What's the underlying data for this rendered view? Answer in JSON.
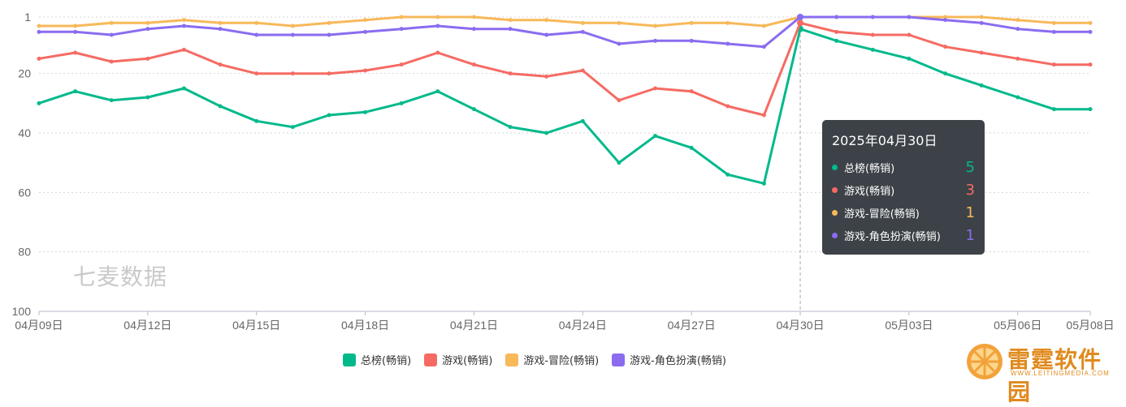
{
  "chart_data": {
    "type": "line",
    "y_inverted": true,
    "ylim": [
      1,
      100
    ],
    "y_ticks": [
      "1",
      "20",
      "40",
      "60",
      "80",
      "100"
    ],
    "x": [
      "04月09日",
      "04月10日",
      "04月11日",
      "04月12日",
      "04月13日",
      "04月14日",
      "04月15日",
      "04月16日",
      "04月17日",
      "04月18日",
      "04月19日",
      "04月20日",
      "04月21日",
      "04月22日",
      "04月23日",
      "04月24日",
      "04月25日",
      "04月26日",
      "04月27日",
      "04月28日",
      "04月29日",
      "04月30日",
      "05月01日",
      "05月02日",
      "05月03日",
      "05月04日",
      "05月05日",
      "05月06日",
      "05月07日",
      "05月08日"
    ],
    "x_tick_labels": [
      "04月09日",
      "04月12日",
      "04月15日",
      "04月18日",
      "04月21日",
      "04月24日",
      "04月27日",
      "04月30日",
      "05月03日",
      "05月06日",
      "05月08日"
    ],
    "series": [
      {
        "name": "总榜(畅销)",
        "color": "#00b98b",
        "values": [
          30,
          26,
          29,
          28,
          25,
          31,
          36,
          38,
          34,
          33,
          30,
          26,
          32,
          38,
          40,
          36,
          50,
          41,
          45,
          54,
          57,
          5,
          9,
          12,
          15,
          20,
          24,
          28,
          32,
          32
        ]
      },
      {
        "name": "游戏(畅销)",
        "color": "#f56b63",
        "values": [
          15,
          13,
          16,
          15,
          12,
          17,
          20,
          20,
          20,
          19,
          17,
          13,
          17,
          20,
          21,
          19,
          29,
          25,
          26,
          31,
          34,
          3,
          6,
          7,
          7,
          11,
          13,
          15,
          17,
          17
        ]
      },
      {
        "name": "游戏-冒险(畅销)",
        "color": "#f7b95a",
        "values": [
          4,
          4,
          3,
          3,
          2,
          3,
          3,
          4,
          3,
          2,
          1,
          1,
          1,
          2,
          2,
          3,
          3,
          4,
          3,
          3,
          4,
          1,
          1,
          1,
          1,
          1,
          1,
          2,
          3,
          3
        ]
      },
      {
        "name": "游戏-角色扮演(畅销)",
        "color": "#8b6cf0",
        "values": [
          6,
          6,
          7,
          5,
          4,
          5,
          7,
          7,
          7,
          6,
          5,
          4,
          5,
          5,
          7,
          6,
          10,
          9,
          9,
          10,
          11,
          1,
          1,
          1,
          1,
          2,
          3,
          5,
          6,
          6
        ]
      }
    ],
    "grid": true,
    "legend_position": "bottom-center",
    "highlight_index": 21
  },
  "tooltip": {
    "title": "2025年04月30日",
    "rows": [
      {
        "name": "总榜(畅销)",
        "value": "5",
        "color": "#00b98b"
      },
      {
        "name": "游戏(畅销)",
        "value": "3",
        "color": "#f56b63"
      },
      {
        "name": "游戏-冒险(畅销)",
        "value": "1",
        "color": "#f7b95a"
      },
      {
        "name": "游戏-角色扮演(畅销)",
        "value": "1",
        "color": "#8b6cf0"
      }
    ]
  },
  "watermark": "七麦数据",
  "logo": {
    "text": "雷霆软件园",
    "sub": "WWW.LEITINGMEDIA.COM"
  }
}
